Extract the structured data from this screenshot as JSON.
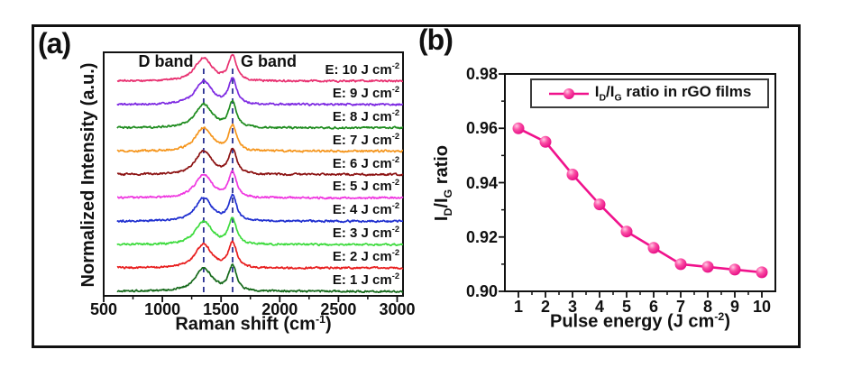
{
  "figure": {
    "background": "#ffffff",
    "frame_border_color": "#111111"
  },
  "panel_a": {
    "label": "(a)",
    "y_axis_title": "Normalized Intensity (a.u.)",
    "x_axis_title_pre": "Raman shift (cm",
    "x_axis_title_sup": "-1",
    "x_axis_title_post": ")",
    "d_band_label": "D band",
    "g_band_label": "G band"
  },
  "panel_b": {
    "label": "(b)",
    "y_title_p1": "I",
    "y_title_s1": "D",
    "y_title_p2": "/I",
    "y_title_s2": "G",
    "y_title_p3": " ratio",
    "x_axis_title_pre": "Pulse energy (J cm",
    "x_axis_title_sup": "-2",
    "x_axis_title_post": ")",
    "legend_p1": "I",
    "legend_s1": "D",
    "legend_p2": "/I",
    "legend_s2": "G",
    "legend_p3": " ratio in rGO films",
    "legend_marker_color": "#f0128c"
  },
  "chart_data": [
    {
      "type": "line",
      "title": "Raman spectra of rGO films at increasing laser pulse energies",
      "xlabel": "Raman shift (cm-1)",
      "ylabel": "Normalized Intensity (a.u.)",
      "x_range": [
        500,
        3050
      ],
      "x_ticks": [
        500,
        1000,
        1500,
        2000,
        2500,
        3000
      ],
      "grid": false,
      "d_band_center": 1352,
      "g_band_center": 1598,
      "dashed_guide_color": "#2a3192",
      "series": [
        {
          "label_pre": "E: 1 J cm",
          "label_sup": "-2",
          "energy": 1,
          "color": "#15691a",
          "d_peak_rel": 1.0,
          "g_peak_rel": 1.0
        },
        {
          "label_pre": "E: 2 J cm",
          "label_sup": "-2",
          "energy": 2,
          "color": "#e81e1e",
          "d_peak_rel": 1.0,
          "g_peak_rel": 1.0
        },
        {
          "label_pre": "E: 3 J cm",
          "label_sup": "-2",
          "energy": 3,
          "color": "#3ddb3d",
          "d_peak_rel": 1.0,
          "g_peak_rel": 1.0
        },
        {
          "label_pre": "E: 4 J cm",
          "label_sup": "-2",
          "energy": 4,
          "color": "#2030d0",
          "d_peak_rel": 1.0,
          "g_peak_rel": 1.0
        },
        {
          "label_pre": "E: 5 J cm",
          "label_sup": "-2",
          "energy": 5,
          "color": "#ef38e0",
          "d_peak_rel": 1.0,
          "g_peak_rel": 1.0
        },
        {
          "label_pre": "E: 6 J cm",
          "label_sup": "-2",
          "energy": 6,
          "color": "#8c1212",
          "d_peak_rel": 1.0,
          "g_peak_rel": 1.0
        },
        {
          "label_pre": "E: 7 J cm",
          "label_sup": "-2",
          "energy": 7,
          "color": "#f5961e",
          "d_peak_rel": 1.0,
          "g_peak_rel": 1.0
        },
        {
          "label_pre": "E: 8 J cm",
          "label_sup": "-2",
          "energy": 8,
          "color": "#1f8c1f",
          "d_peak_rel": 1.0,
          "g_peak_rel": 1.0
        },
        {
          "label_pre": "E: 9 J cm",
          "label_sup": "-2",
          "energy": 9,
          "color": "#7e2ae2",
          "d_peak_rel": 1.0,
          "g_peak_rel": 1.0
        },
        {
          "label_pre": "E: 10 J cm",
          "label_sup": "-2",
          "energy": 10,
          "color": "#e83070",
          "d_peak_rel": 1.0,
          "g_peak_rel": 1.0
        }
      ]
    },
    {
      "type": "line",
      "title": "ID/IG ratio in rGO films vs pulse energy",
      "xlabel": "Pulse energy (J cm-2)",
      "ylabel": "ID/IG ratio",
      "legend_entry": "ID/IG ratio in rGO films",
      "legend_position": "top",
      "grid": false,
      "x": [
        1,
        2,
        3,
        4,
        5,
        6,
        7,
        8,
        9,
        10
      ],
      "y": [
        0.96,
        0.955,
        0.943,
        0.932,
        0.922,
        0.916,
        0.91,
        0.909,
        0.908,
        0.907
      ],
      "x_ticks": [
        1,
        2,
        3,
        4,
        5,
        6,
        7,
        8,
        9,
        10
      ],
      "y_ticks": [
        "0.90",
        "0.92",
        "0.94",
        "0.96",
        "0.98"
      ],
      "xlim": [
        0.5,
        10.5
      ],
      "ylim": [
        0.9,
        0.98
      ],
      "line_color": "#f0128c"
    }
  ]
}
